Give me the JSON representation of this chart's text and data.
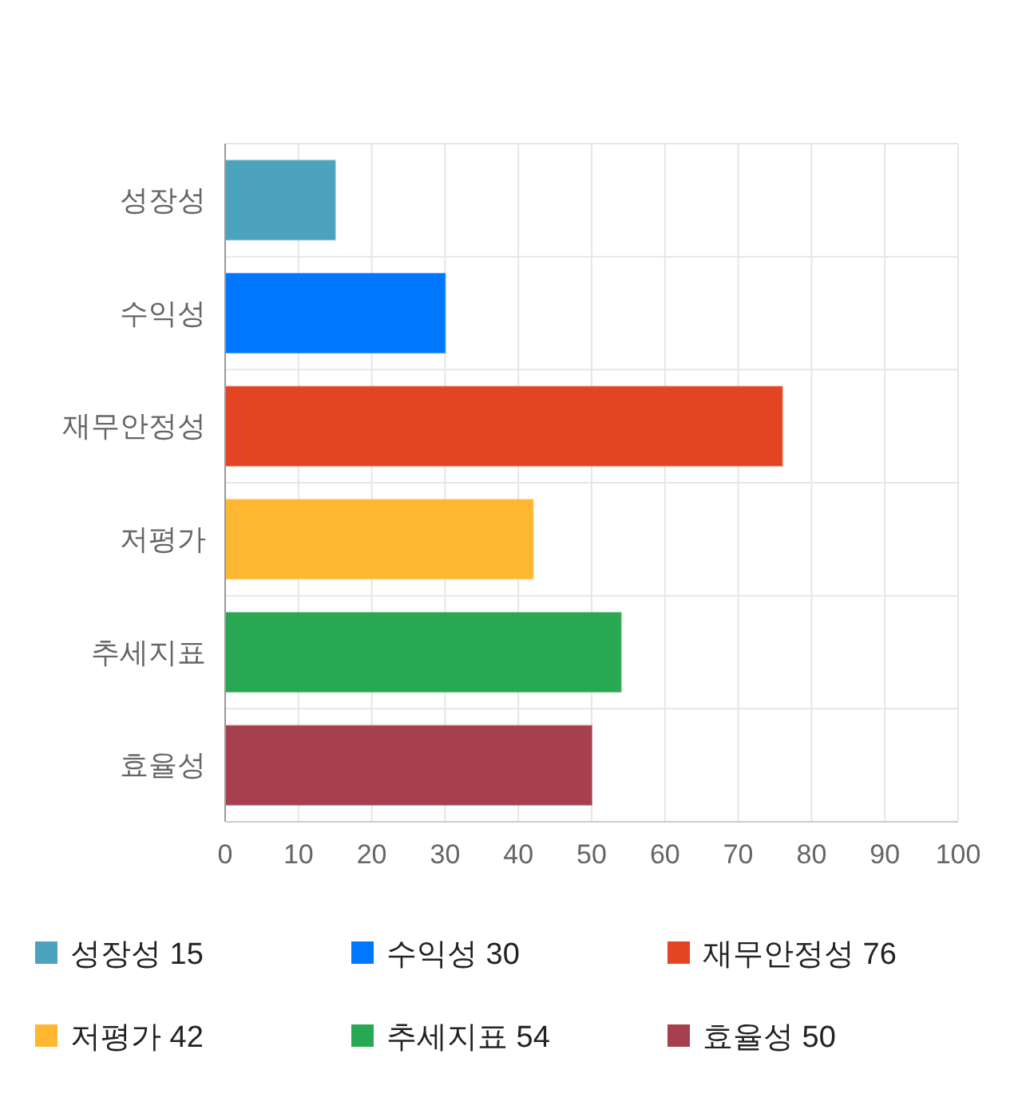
{
  "chart_data": {
    "type": "bar",
    "orientation": "horizontal",
    "stacked": true,
    "categories": [
      "성장성",
      "수익성",
      "재무안정성",
      "저평가",
      "추세지표",
      "효율성"
    ],
    "series": [
      {
        "name": "성장성 15",
        "color": "#4ba3bd",
        "values": [
          15,
          null,
          null,
          null,
          null,
          null
        ]
      },
      {
        "name": "수익성 30",
        "color": "#0077ff",
        "values": [
          null,
          30,
          null,
          null,
          null,
          null
        ]
      },
      {
        "name": "재무안정성 76",
        "color": "#e34423",
        "values": [
          null,
          null,
          76,
          null,
          null,
          null
        ]
      },
      {
        "name": "저평가 42",
        "color": "#ffb732",
        "values": [
          null,
          null,
          null,
          42,
          null,
          null
        ]
      },
      {
        "name": "추세지표 54",
        "color": "#29a854",
        "values": [
          null,
          null,
          null,
          null,
          54,
          null
        ]
      },
      {
        "name": "효율성 50",
        "color": "#a6404e",
        "values": [
          null,
          null,
          null,
          null,
          null,
          50
        ]
      }
    ],
    "xlim": [
      0,
      100
    ],
    "xticks": [
      0,
      10,
      20,
      30,
      40,
      50,
      60,
      70,
      80,
      90,
      100
    ],
    "grid": true,
    "legend": "bottom"
  }
}
